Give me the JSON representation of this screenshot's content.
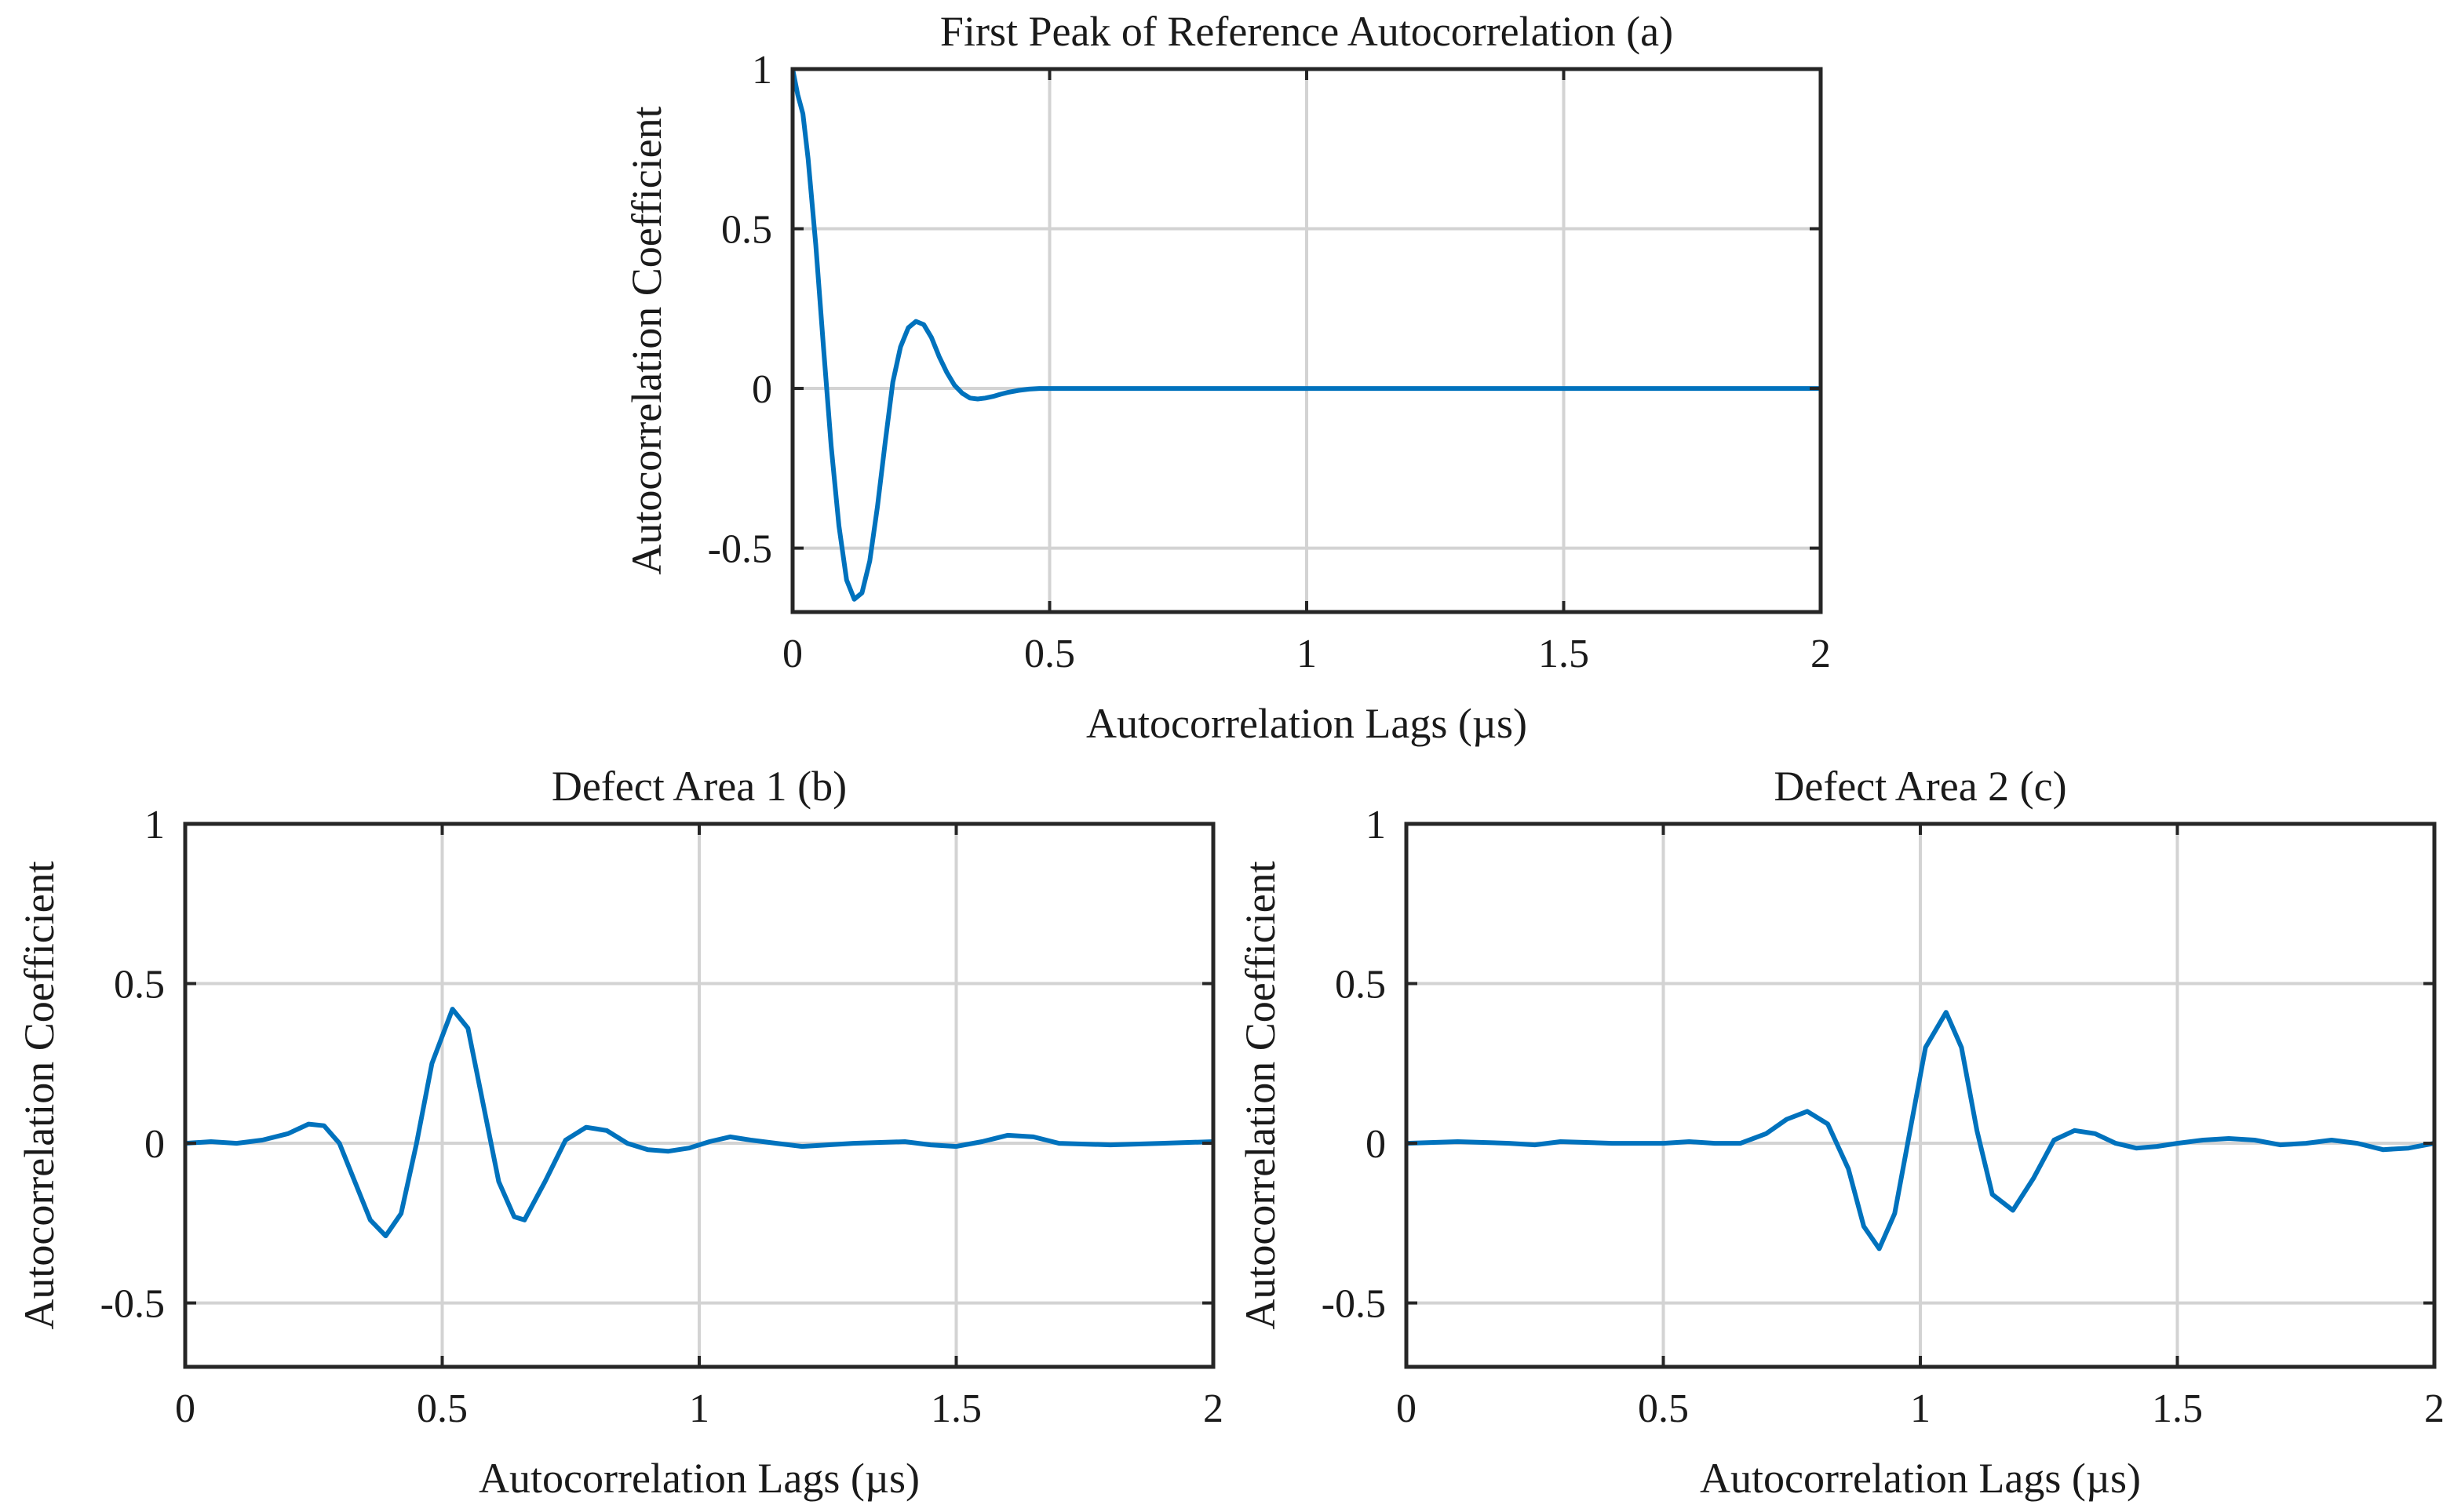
{
  "chart_data": [
    {
      "id": "a",
      "type": "line",
      "title": "First Peak of Reference Autocorrelation (a)",
      "xlabel": "Autocorrelation Lags (µs)",
      "ylabel": "Autocorrelation Coefficient",
      "xlim": [
        0,
        2
      ],
      "ylim": [
        -0.7,
        1
      ],
      "xticks": [
        0,
        0.5,
        1,
        1.5,
        2
      ],
      "xtick_labels": [
        "0",
        "0.5",
        "1",
        "1.5",
        "2"
      ],
      "yticks": [
        -0.5,
        0,
        0.5,
        1
      ],
      "ytick_labels": [
        "-0.5",
        "0",
        "0.5",
        "1"
      ],
      "grid": true,
      "series": [
        {
          "name": "Reference autocorrelation",
          "color": "#0072bd",
          "x": [
            0,
            0.01,
            0.02,
            0.03,
            0.045,
            0.06,
            0.075,
            0.09,
            0.105,
            0.12,
            0.135,
            0.15,
            0.165,
            0.18,
            0.195,
            0.21,
            0.225,
            0.24,
            0.255,
            0.27,
            0.285,
            0.3,
            0.315,
            0.33,
            0.345,
            0.36,
            0.375,
            0.39,
            0.405,
            0.42,
            0.44,
            0.46,
            0.48,
            0.5,
            1.0,
            1.5,
            2.0
          ],
          "y": [
            1.0,
            0.92,
            0.86,
            0.72,
            0.45,
            0.13,
            -0.18,
            -0.43,
            -0.6,
            -0.66,
            -0.64,
            -0.54,
            -0.37,
            -0.17,
            0.02,
            0.13,
            0.19,
            0.21,
            0.2,
            0.16,
            0.1,
            0.05,
            0.01,
            -0.015,
            -0.03,
            -0.033,
            -0.03,
            -0.025,
            -0.018,
            -0.012,
            -0.006,
            -0.002,
            0.0,
            0.0,
            0.0,
            0.0,
            0.0
          ]
        }
      ]
    },
    {
      "id": "b",
      "type": "line",
      "title": "Defect Area 1 (b)",
      "xlabel": "Autocorrelation Lags (µs)",
      "ylabel": "Autocorrelation Coefficient",
      "xlim": [
        0,
        2
      ],
      "ylim": [
        -0.7,
        1
      ],
      "xticks": [
        0,
        0.5,
        1,
        1.5,
        2
      ],
      "xtick_labels": [
        "0",
        "0.5",
        "1",
        "1.5",
        "2"
      ],
      "yticks": [
        -0.5,
        0,
        0.5,
        1
      ],
      "ytick_labels": [
        "-0.5",
        "0",
        "0.5",
        "1"
      ],
      "grid": true,
      "series": [
        {
          "name": "Defect Area 1",
          "color": "#0072bd",
          "x": [
            0,
            0.05,
            0.1,
            0.15,
            0.2,
            0.24,
            0.27,
            0.3,
            0.33,
            0.36,
            0.39,
            0.42,
            0.45,
            0.48,
            0.52,
            0.55,
            0.58,
            0.61,
            0.64,
            0.66,
            0.7,
            0.74,
            0.78,
            0.82,
            0.86,
            0.9,
            0.94,
            0.98,
            1.02,
            1.06,
            1.1,
            1.15,
            1.2,
            1.3,
            1.4,
            1.45,
            1.5,
            1.55,
            1.6,
            1.65,
            1.7,
            1.8,
            1.9,
            2.0
          ],
          "y": [
            0.0,
            0.005,
            0.0,
            0.01,
            0.03,
            0.06,
            0.055,
            0.0,
            -0.12,
            -0.24,
            -0.29,
            -0.22,
            0.0,
            0.25,
            0.42,
            0.36,
            0.12,
            -0.12,
            -0.23,
            -0.24,
            -0.12,
            0.01,
            0.05,
            0.04,
            0.0,
            -0.02,
            -0.025,
            -0.015,
            0.005,
            0.02,
            0.01,
            0.0,
            -0.01,
            0.0,
            0.005,
            -0.005,
            -0.01,
            0.005,
            0.025,
            0.02,
            0.0,
            -0.005,
            0.0,
            0.005
          ]
        }
      ]
    },
    {
      "id": "c",
      "type": "line",
      "title": "Defect Area 2 (c)",
      "xlabel": "Autocorrelation Lags (µs)",
      "ylabel": "Autocorrelation Coefficient",
      "xlim": [
        0,
        2
      ],
      "ylim": [
        -0.7,
        1
      ],
      "xticks": [
        0,
        0.5,
        1,
        1.5,
        2
      ],
      "xtick_labels": [
        "0",
        "0.5",
        "1",
        "1.5",
        "2"
      ],
      "yticks": [
        -0.5,
        0,
        0.5,
        1
      ],
      "ytick_labels": [
        "-0.5",
        "0",
        "0.5",
        "1"
      ],
      "grid": true,
      "series": [
        {
          "name": "Defect Area 2",
          "color": "#0072bd",
          "x": [
            0,
            0.1,
            0.2,
            0.25,
            0.3,
            0.4,
            0.5,
            0.55,
            0.6,
            0.65,
            0.7,
            0.74,
            0.78,
            0.82,
            0.86,
            0.89,
            0.92,
            0.95,
            0.98,
            1.01,
            1.05,
            1.08,
            1.11,
            1.14,
            1.18,
            1.22,
            1.26,
            1.3,
            1.34,
            1.38,
            1.42,
            1.46,
            1.5,
            1.55,
            1.6,
            1.65,
            1.7,
            1.75,
            1.8,
            1.85,
            1.9,
            1.95,
            2.0
          ],
          "y": [
            0.0,
            0.005,
            0.0,
            -0.005,
            0.005,
            0.0,
            0.0,
            0.005,
            0.0,
            0.0,
            0.03,
            0.075,
            0.1,
            0.06,
            -0.08,
            -0.26,
            -0.33,
            -0.22,
            0.04,
            0.3,
            0.41,
            0.3,
            0.04,
            -0.16,
            -0.21,
            -0.11,
            0.01,
            0.04,
            0.03,
            0.0,
            -0.015,
            -0.01,
            0.0,
            0.01,
            0.015,
            0.01,
            -0.005,
            0.0,
            0.01,
            0.0,
            -0.02,
            -0.015,
            0.0
          ]
        }
      ]
    }
  ]
}
